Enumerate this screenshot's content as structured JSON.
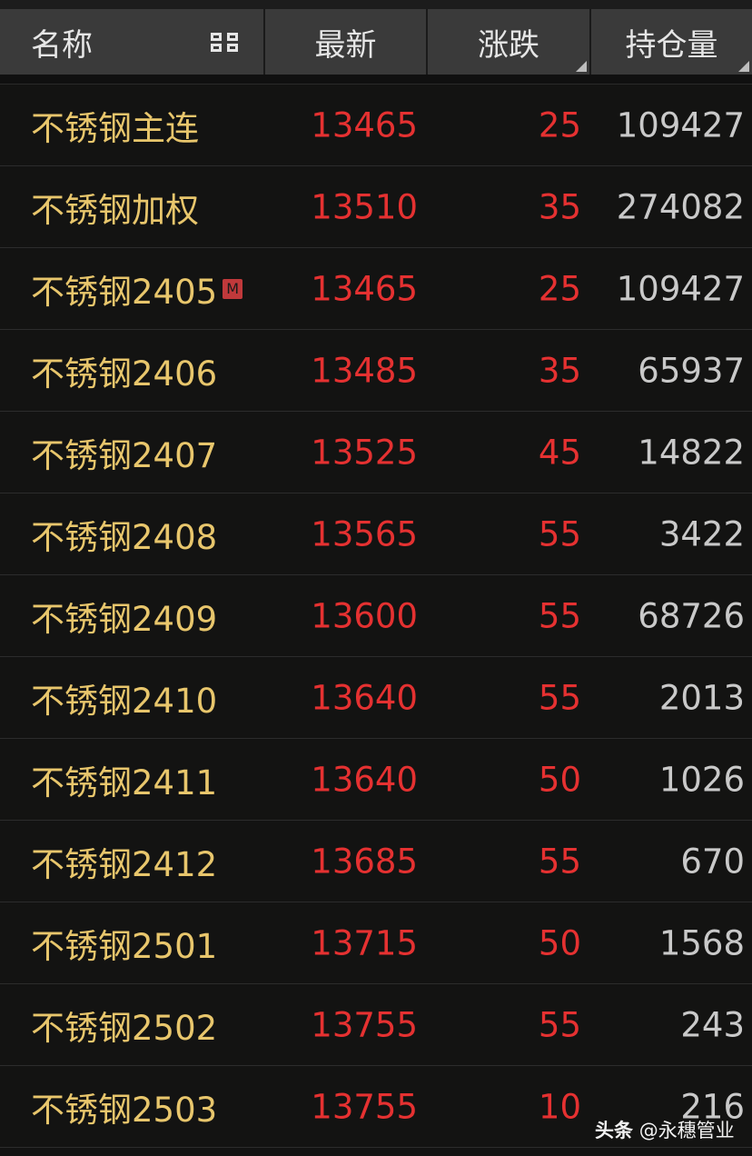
{
  "header": {
    "name": "名称",
    "last": "最新",
    "change": "涨跌",
    "open_interest": "持仓量",
    "layout_icon": "grid-layout-icon"
  },
  "colors": {
    "name": "#e8c66c",
    "up": "#e53131",
    "oi": "#c9c9c9",
    "background": "#131312",
    "header": "#3a3a3a",
    "badge": "#c0393b"
  },
  "rows": [
    {
      "name": "不锈钢主连",
      "badge": "",
      "last": "13465",
      "change": "25",
      "oi": "109427"
    },
    {
      "name": "不锈钢加权",
      "badge": "",
      "last": "13510",
      "change": "35",
      "oi": "274082"
    },
    {
      "name": "不锈钢2405",
      "badge": "M",
      "last": "13465",
      "change": "25",
      "oi": "109427"
    },
    {
      "name": "不锈钢2406",
      "badge": "",
      "last": "13485",
      "change": "35",
      "oi": "65937"
    },
    {
      "name": "不锈钢2407",
      "badge": "",
      "last": "13525",
      "change": "45",
      "oi": "14822"
    },
    {
      "name": "不锈钢2408",
      "badge": "",
      "last": "13565",
      "change": "55",
      "oi": "3422"
    },
    {
      "name": "不锈钢2409",
      "badge": "",
      "last": "13600",
      "change": "55",
      "oi": "68726"
    },
    {
      "name": "不锈钢2410",
      "badge": "",
      "last": "13640",
      "change": "55",
      "oi": "2013"
    },
    {
      "name": "不锈钢2411",
      "badge": "",
      "last": "13640",
      "change": "50",
      "oi": "1026"
    },
    {
      "name": "不锈钢2412",
      "badge": "",
      "last": "13685",
      "change": "55",
      "oi": "670"
    },
    {
      "name": "不锈钢2501",
      "badge": "",
      "last": "13715",
      "change": "50",
      "oi": "1568"
    },
    {
      "name": "不锈钢2502",
      "badge": "",
      "last": "13755",
      "change": "55",
      "oi": "243"
    },
    {
      "name": "不锈钢2503",
      "badge": "",
      "last": "13755",
      "change": "10",
      "oi": "216"
    }
  ],
  "watermark": {
    "brand": "头条",
    "handle": "@永穗管业"
  }
}
